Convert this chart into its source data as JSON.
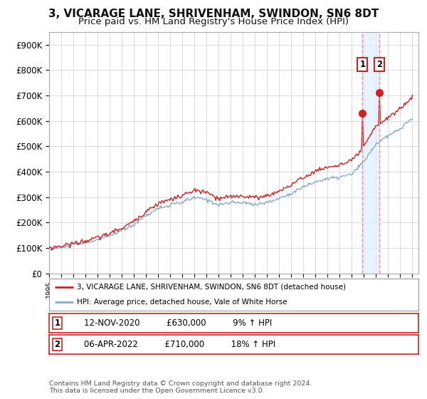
{
  "title": "3, VICARAGE LANE, SHRIVENHAM, SWINDON, SN6 8DT",
  "subtitle": "Price paid vs. HM Land Registry's House Price Index (HPI)",
  "title_fontsize": 11,
  "subtitle_fontsize": 9.5,
  "ylim": [
    0,
    950000
  ],
  "yticks": [
    0,
    100000,
    200000,
    300000,
    400000,
    500000,
    600000,
    700000,
    800000,
    900000
  ],
  "ytick_labels": [
    "£0",
    "£100K",
    "£200K",
    "£300K",
    "£400K",
    "£500K",
    "£600K",
    "£700K",
    "£800K",
    "£900K"
  ],
  "red_line_color": "#cc2222",
  "blue_line_color": "#88aacc",
  "vline_color": "#ff8888",
  "shaded_color": "#ddeeff",
  "marker1_value": 630000,
  "marker2_value": 710000,
  "marker1_year": 2020.87,
  "marker2_year": 2022.27,
  "legend_line1": "3, VICARAGE LANE, SHRIVENHAM, SWINDON, SN6 8DT (detached house)",
  "legend_line2": "HPI: Average price, detached house, Vale of White Horse",
  "ann1_date": "12-NOV-2020",
  "ann1_price": "£630,000",
  "ann1_hpi": "9% ↑ HPI",
  "ann2_date": "06-APR-2022",
  "ann2_price": "£710,000",
  "ann2_hpi": "18% ↑ HPI",
  "footer": "Contains HM Land Registry data © Crown copyright and database right 2024.\nThis data is licensed under the Open Government Licence v3.0.",
  "grid_color": "#cccccc",
  "background_color": "#ffffff"
}
